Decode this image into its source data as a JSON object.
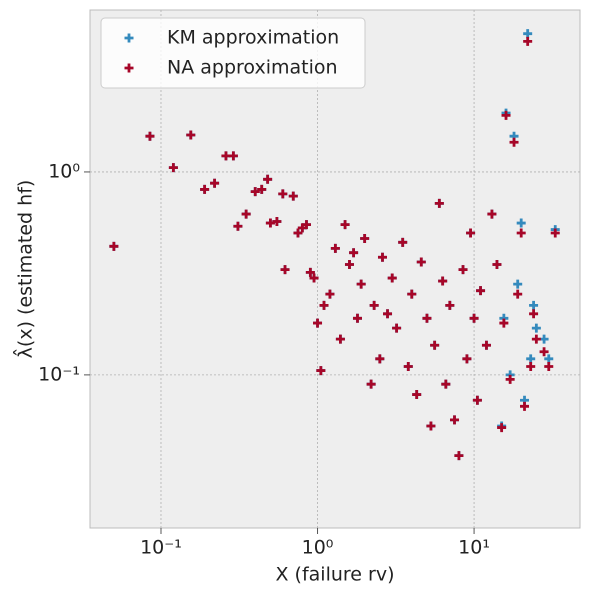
{
  "chart_data": {
    "type": "scatter",
    "xlabel": "X (failure rv)",
    "ylabel": "λ̂(x) (estimated hf)",
    "x": [
      0.05,
      0.085,
      0.12,
      0.155,
      0.19,
      0.22,
      0.26,
      0.29,
      0.31,
      0.35,
      0.4,
      0.44,
      0.48,
      0.5,
      0.55,
      0.6,
      0.62,
      0.7,
      0.75,
      0.8,
      0.85,
      0.9,
      0.95,
      1.0,
      1.05,
      1.1,
      1.2,
      1.3,
      1.4,
      1.5,
      1.6,
      1.7,
      1.8,
      1.9,
      2.0,
      2.2,
      2.3,
      2.5,
      2.6,
      2.8,
      3.0,
      3.2,
      3.5,
      3.8,
      4.0,
      4.3,
      4.6,
      5.0,
      5.3,
      5.6,
      6.0,
      6.3,
      6.6,
      7.0,
      7.5,
      8.0,
      8.5,
      9.0,
      9.5,
      10,
      10.5,
      11,
      12,
      13,
      14,
      15,
      15.5,
      16,
      17,
      18,
      19,
      20,
      21,
      22,
      23,
      24,
      25,
      28,
      30,
      33
    ],
    "series": [
      {
        "name": "KM approximation",
        "color": "#348abd",
        "values": [
          0.43,
          1.5,
          1.05,
          1.52,
          0.82,
          0.88,
          1.2,
          1.2,
          0.54,
          0.62,
          0.8,
          0.82,
          0.92,
          0.56,
          0.57,
          0.78,
          0.33,
          0.76,
          0.5,
          0.53,
          0.55,
          0.32,
          0.3,
          0.18,
          0.105,
          0.22,
          0.25,
          0.42,
          0.15,
          0.55,
          0.35,
          0.4,
          0.19,
          0.28,
          0.47,
          0.09,
          0.22,
          0.12,
          0.38,
          0.2,
          0.3,
          0.17,
          0.45,
          0.11,
          0.25,
          0.08,
          0.36,
          0.19,
          0.056,
          0.14,
          0.7,
          0.29,
          0.09,
          0.22,
          0.06,
          0.04,
          0.33,
          0.12,
          0.5,
          0.19,
          0.075,
          0.26,
          0.14,
          0.62,
          0.35,
          0.056,
          0.19,
          1.95,
          0.1,
          1.5,
          0.28,
          0.56,
          0.075,
          4.8,
          0.12,
          0.22,
          0.17,
          0.15,
          0.12,
          0.52
        ]
      },
      {
        "name": "NA approximation",
        "color": "#a60628",
        "values": [
          0.43,
          1.5,
          1.05,
          1.52,
          0.82,
          0.88,
          1.2,
          1.2,
          0.54,
          0.62,
          0.8,
          0.82,
          0.92,
          0.56,
          0.57,
          0.78,
          0.33,
          0.76,
          0.5,
          0.53,
          0.55,
          0.32,
          0.3,
          0.18,
          0.105,
          0.22,
          0.25,
          0.42,
          0.15,
          0.55,
          0.35,
          0.4,
          0.19,
          0.28,
          0.47,
          0.09,
          0.22,
          0.12,
          0.38,
          0.2,
          0.3,
          0.17,
          0.45,
          0.11,
          0.25,
          0.08,
          0.36,
          0.19,
          0.056,
          0.14,
          0.7,
          0.29,
          0.09,
          0.22,
          0.06,
          0.04,
          0.33,
          0.12,
          0.5,
          0.19,
          0.075,
          0.26,
          0.14,
          0.62,
          0.35,
          0.055,
          0.18,
          1.9,
          0.095,
          1.4,
          0.25,
          0.5,
          0.07,
          4.4,
          0.11,
          0.2,
          0.15,
          0.13,
          0.11,
          0.5
        ]
      }
    ],
    "xscale": "log",
    "yscale": "log",
    "xlim": [
      0.0352,
      47.5
    ],
    "ylim": [
      0.0176,
      6.28
    ],
    "xticks": [
      {
        "value": 0.1,
        "label": "10⁻¹"
      },
      {
        "value": 1,
        "label": "10⁰"
      },
      {
        "value": 10,
        "label": "10¹"
      }
    ],
    "yticks": [
      {
        "value": 0.1,
        "label": "10⁻¹"
      },
      {
        "value": 1,
        "label": "10⁰"
      }
    ],
    "grid": true,
    "legend": "upper left"
  }
}
